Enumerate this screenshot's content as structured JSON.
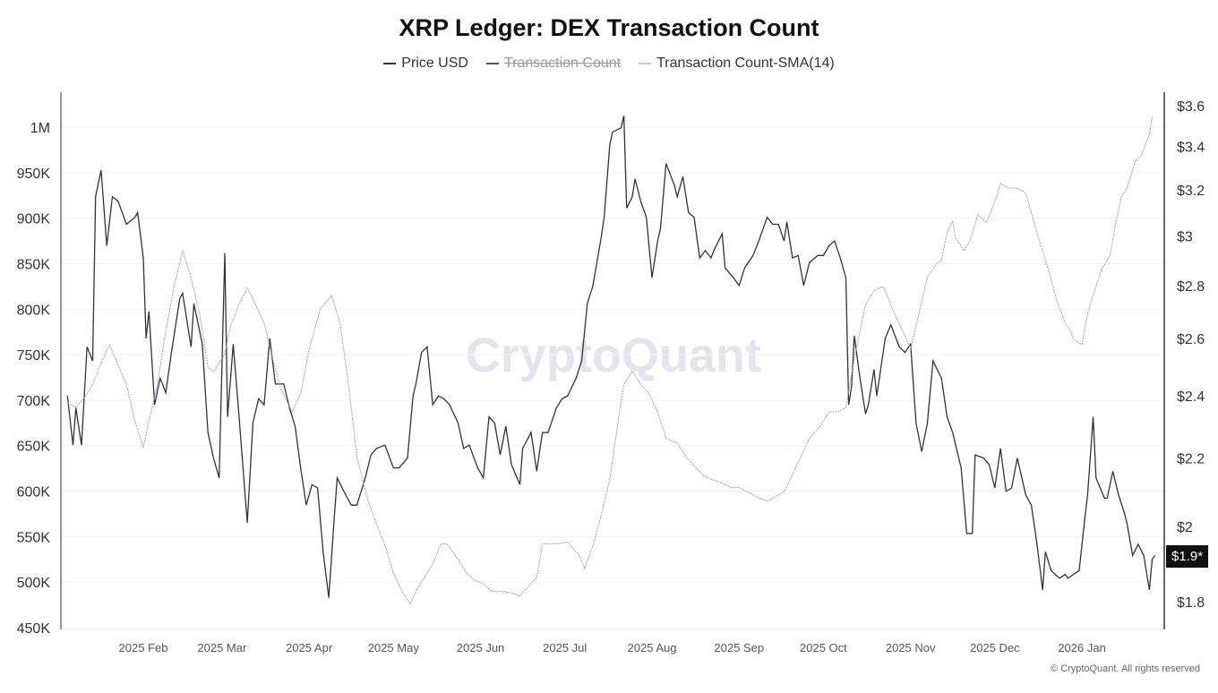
{
  "title": "XRP Ledger: DEX Transaction Count",
  "legend": [
    {
      "label": "Price USD",
      "color": "#333333",
      "hidden": false
    },
    {
      "label": "Transaction Count",
      "color": "#555555",
      "hidden": true
    },
    {
      "label": "Transaction Count-SMA(14)",
      "color": "#9a9af0",
      "hidden": false
    }
  ],
  "watermark": "CryptoQuant",
  "footer": "© CryptoQuant. All rights reserved",
  "current_price_badge": "$1.9*",
  "chart_data": {
    "type": "line",
    "title": "XRP Ledger: DEX Transaction Count",
    "x_ticks": [
      "2025 Feb",
      "2025 Mar",
      "2025 Apr",
      "2025 May",
      "2025 Jun",
      "2025 Jul",
      "2025 Aug",
      "2025 Sep",
      "2025 Oct",
      "2025 Nov",
      "2025 Dec",
      "2026 Jan"
    ],
    "left_axis": {
      "ticks": [
        "1M",
        "950K",
        "900K",
        "850K",
        "800K",
        "750K",
        "700K",
        "650K",
        "600K",
        "550K",
        "500K",
        "450K"
      ],
      "range": [
        450000,
        1000000
      ],
      "scale": "linear"
    },
    "right_axis": {
      "ticks": [
        "$3.6",
        "$3.4",
        "$3.2",
        "$3",
        "$2.8",
        "$2.6",
        "$2.4",
        "$2.2",
        "$2",
        "$1.8"
      ],
      "range": [
        1.8,
        3.6
      ],
      "scale": "log"
    },
    "grid": true,
    "legend_position": "top",
    "series": [
      {
        "name": "Price USD",
        "axis": "right",
        "color": "#333333",
        "x": [
          "2025-01-05",
          "2025-01-07",
          "2025-01-08",
          "2025-01-10",
          "2025-01-12",
          "2025-01-14",
          "2025-01-15",
          "2025-01-17",
          "2025-01-19",
          "2025-01-21",
          "2025-01-23",
          "2025-01-26",
          "2025-01-29",
          "2025-01-30",
          "2025-02-01",
          "2025-02-02",
          "2025-02-03",
          "2025-02-05",
          "2025-02-07",
          "2025-02-09",
          "2025-02-11",
          "2025-02-14",
          "2025-02-15",
          "2025-02-18",
          "2025-02-19",
          "2025-02-22",
          "2025-02-24",
          "2025-02-26",
          "2025-02-28",
          "2025-03-02",
          "2025-03-03",
          "2025-03-05",
          "2025-03-07",
          "2025-03-10",
          "2025-03-12",
          "2025-03-14",
          "2025-03-16",
          "2025-03-18",
          "2025-03-20",
          "2025-03-23",
          "2025-03-25",
          "2025-03-27",
          "2025-03-29",
          "2025-03-31",
          "2025-04-02",
          "2025-04-04",
          "2025-04-06",
          "2025-04-08",
          "2025-04-10",
          "2025-04-11",
          "2025-04-14",
          "2025-04-16",
          "2025-04-18",
          "2025-04-21",
          "2025-04-23",
          "2025-04-25",
          "2025-04-28",
          "2025-05-01",
          "2025-05-03",
          "2025-05-06",
          "2025-05-08",
          "2025-05-09",
          "2025-05-11",
          "2025-05-13",
          "2025-05-15",
          "2025-05-17",
          "2025-05-19",
          "2025-05-21",
          "2025-05-24",
          "2025-05-26",
          "2025-05-28",
          "2025-05-31",
          "2025-06-02",
          "2025-06-04",
          "2025-06-06",
          "2025-06-08",
          "2025-06-10",
          "2025-06-12",
          "2025-06-15",
          "2025-06-16",
          "2025-06-19",
          "2025-06-21",
          "2025-06-23",
          "2025-06-25",
          "2025-06-28",
          "2025-06-30",
          "2025-07-02",
          "2025-07-05",
          "2025-07-07",
          "2025-07-09",
          "2025-07-11",
          "2025-07-14",
          "2025-07-15",
          "2025-07-17",
          "2025-07-18",
          "2025-07-21",
          "2025-07-22",
          "2025-07-23",
          "2025-07-25",
          "2025-07-26",
          "2025-07-28",
          "2025-07-30",
          "2025-08-01",
          "2025-08-03",
          "2025-08-04",
          "2025-08-06",
          "2025-08-09",
          "2025-08-10",
          "2025-08-12",
          "2025-08-14",
          "2025-08-16",
          "2025-08-18",
          "2025-08-20",
          "2025-08-22",
          "2025-08-23",
          "2025-08-26",
          "2025-08-27",
          "2025-08-30",
          "2025-09-01",
          "2025-09-03",
          "2025-09-06",
          "2025-09-08",
          "2025-09-11",
          "2025-09-13",
          "2025-09-15",
          "2025-09-17",
          "2025-09-18",
          "2025-09-20",
          "2025-09-22",
          "2025-09-24",
          "2025-09-26",
          "2025-09-29",
          "2025-10-01",
          "2025-10-03",
          "2025-10-05",
          "2025-10-07",
          "2025-10-09",
          "2025-10-10",
          "2025-10-11",
          "2025-10-12",
          "2025-10-14",
          "2025-10-16",
          "2025-10-17",
          "2025-10-19",
          "2025-10-20",
          "2025-10-23",
          "2025-10-25",
          "2025-10-28",
          "2025-10-30",
          "2025-11-01",
          "2025-11-03",
          "2025-11-05",
          "2025-11-07",
          "2025-11-09",
          "2025-11-12",
          "2025-11-14",
          "2025-11-16",
          "2025-11-19",
          "2025-11-21",
          "2025-11-23",
          "2025-11-24",
          "2025-11-27",
          "2025-11-29",
          "2025-12-01",
          "2025-12-03",
          "2025-12-05",
          "2025-12-07",
          "2025-12-09",
          "2025-12-12",
          "2025-12-14",
          "2025-12-16",
          "2025-12-18",
          "2025-12-19",
          "2025-12-21",
          "2025-12-24",
          "2025-12-26",
          "2025-12-27",
          "2025-12-29",
          "2025-12-31",
          "2026-01-02",
          "2026-01-03",
          "2026-01-05",
          "2026-01-06",
          "2026-01-09",
          "2026-01-10",
          "2026-01-12",
          "2026-01-14",
          "2026-01-16",
          "2026-01-17",
          "2026-01-19",
          "2026-01-21",
          "2026-01-23",
          "2026-01-25",
          "2026-01-26",
          "2026-01-27"
        ],
        "values": [
          2.4,
          2.24,
          2.36,
          2.24,
          2.57,
          2.52,
          3.17,
          3.29,
          2.96,
          3.17,
          3.15,
          3.05,
          3.08,
          3.1,
          2.91,
          2.6,
          2.7,
          2.37,
          2.46,
          2.41,
          2.55,
          2.75,
          2.77,
          2.57,
          2.73,
          2.58,
          2.28,
          2.2,
          2.14,
          2.93,
          2.33,
          2.58,
          2.34,
          2.01,
          2.31,
          2.39,
          2.37,
          2.6,
          2.44,
          2.44,
          2.36,
          2.3,
          2.17,
          2.06,
          2.12,
          2.11,
          1.93,
          1.81,
          2.03,
          2.14,
          2.09,
          2.06,
          2.06,
          2.14,
          2.21,
          2.23,
          2.24,
          2.17,
          2.17,
          2.2,
          2.4,
          2.44,
          2.55,
          2.57,
          2.37,
          2.4,
          2.39,
          2.37,
          2.31,
          2.23,
          2.24,
          2.17,
          2.14,
          2.33,
          2.31,
          2.21,
          2.3,
          2.18,
          2.12,
          2.23,
          2.28,
          2.16,
          2.28,
          2.28,
          2.36,
          2.39,
          2.4,
          2.46,
          2.52,
          2.73,
          2.8,
          3.0,
          3.08,
          3.41,
          3.47,
          3.49,
          3.55,
          3.12,
          3.17,
          3.25,
          3.15,
          3.08,
          2.83,
          2.98,
          3.03,
          3.32,
          3.22,
          3.17,
          3.26,
          3.1,
          3.08,
          2.91,
          2.94,
          2.91,
          2.94,
          3.01,
          2.87,
          2.83,
          2.8,
          2.87,
          2.92,
          2.98,
          3.08,
          3.05,
          3.05,
          2.98,
          3.06,
          2.91,
          2.92,
          2.8,
          2.89,
          2.92,
          2.92,
          2.96,
          2.98,
          2.91,
          2.83,
          2.37,
          2.43,
          2.61,
          2.46,
          2.34,
          2.37,
          2.49,
          2.4,
          2.6,
          2.65,
          2.57,
          2.55,
          2.58,
          2.31,
          2.22,
          2.31,
          2.52,
          2.46,
          2.33,
          2.28,
          2.17,
          1.98,
          1.98,
          2.21,
          2.2,
          2.18,
          2.11,
          2.23,
          2.1,
          2.11,
          2.2,
          2.09,
          2.06,
          1.95,
          1.83,
          1.93,
          1.88,
          1.86,
          1.87,
          1.86,
          1.87,
          1.88,
          2.02,
          2.09,
          2.33,
          2.14,
          2.08,
          2.08,
          2.16,
          2.09,
          2.04,
          2.01,
          1.92,
          1.95,
          1.92,
          1.83,
          1.91,
          1.92
        ]
      },
      {
        "name": "Transaction Count",
        "axis": "left",
        "hidden": true,
        "x": [],
        "values": []
      },
      {
        "name": "Transaction Count-SMA(14)",
        "axis": "left",
        "color": "#9a9af0",
        "x": [
          "2025-01-05",
          "2025-01-08",
          "2025-01-11",
          "2025-01-14",
          "2025-01-17",
          "2025-01-20",
          "2025-01-22",
          "2025-01-26",
          "2025-01-29",
          "2025-02-01",
          "2025-02-03",
          "2025-02-06",
          "2025-02-09",
          "2025-02-12",
          "2025-02-15",
          "2025-02-18",
          "2025-02-21",
          "2025-02-24",
          "2025-02-26",
          "2025-03-02",
          "2025-03-04",
          "2025-03-07",
          "2025-03-10",
          "2025-03-13",
          "2025-03-16",
          "2025-03-19",
          "2025-03-22",
          "2025-03-26",
          "2025-03-29",
          "2025-04-01",
          "2025-04-05",
          "2025-04-09",
          "2025-04-12",
          "2025-04-15",
          "2025-04-18",
          "2025-04-22",
          "2025-04-25",
          "2025-04-28",
          "2025-05-01",
          "2025-05-04",
          "2025-05-07",
          "2025-05-09",
          "2025-05-12",
          "2025-05-15",
          "2025-05-18",
          "2025-05-20",
          "2025-05-24",
          "2025-05-27",
          "2025-05-30",
          "2025-06-02",
          "2025-06-05",
          "2025-06-08",
          "2025-06-12",
          "2025-06-15",
          "2025-06-18",
          "2025-06-21",
          "2025-06-23",
          "2025-06-28",
          "2025-07-02",
          "2025-07-06",
          "2025-07-08",
          "2025-07-11",
          "2025-07-14",
          "2025-07-17",
          "2025-07-20",
          "2025-07-22",
          "2025-07-25",
          "2025-07-28",
          "2025-07-31",
          "2025-08-03",
          "2025-08-06",
          "2025-08-10",
          "2025-08-13",
          "2025-08-16",
          "2025-08-19",
          "2025-08-22",
          "2025-08-26",
          "2025-08-29",
          "2025-09-01",
          "2025-09-04",
          "2025-09-07",
          "2025-09-11",
          "2025-09-14",
          "2025-09-17",
          "2025-09-20",
          "2025-09-23",
          "2025-09-26",
          "2025-09-30",
          "2025-10-03",
          "2025-10-06",
          "2025-10-09",
          "2025-10-12",
          "2025-10-16",
          "2025-10-19",
          "2025-10-22",
          "2025-10-23",
          "2025-10-27",
          "2025-10-30",
          "2025-11-01",
          "2025-11-04",
          "2025-11-07",
          "2025-11-10",
          "2025-11-12",
          "2025-11-14",
          "2025-11-16",
          "2025-11-17",
          "2025-11-20",
          "2025-11-22",
          "2025-11-25",
          "2025-11-28",
          "2025-12-01",
          "2025-12-03",
          "2025-12-06",
          "2025-12-09",
          "2025-12-12",
          "2025-12-15",
          "2025-12-17",
          "2025-12-20",
          "2025-12-23",
          "2025-12-26",
          "2025-12-28",
          "2025-12-29",
          "2026-01-01",
          "2026-01-03",
          "2026-01-05",
          "2026-01-08",
          "2026-01-11",
          "2026-01-13",
          "2026-01-15",
          "2026-01-17",
          "2026-01-20",
          "2026-01-22",
          "2026-01-25",
          "2026-01-26"
        ],
        "values": [
          697000,
          692000,
          702000,
          717000,
          741000,
          761000,
          746000,
          717000,
          677000,
          648000,
          677000,
          717000,
          776000,
          825000,
          864000,
          835000,
          795000,
          736000,
          731000,
          751000,
          781000,
          805000,
          823000,
          805000,
          785000,
          746000,
          712000,
          687000,
          707000,
          756000,
          800000,
          815000,
          785000,
          717000,
          638000,
          589000,
          564000,
          540000,
          510000,
          490000,
          476000,
          490000,
          505000,
          520000,
          542000,
          542000,
          525000,
          510000,
          502000,
          498000,
          490000,
          490000,
          488000,
          485000,
          495000,
          505000,
          542000,
          542000,
          544000,
          530000,
          515000,
          540000,
          574000,
          613000,
          677000,
          717000,
          732000,
          717000,
          707000,
          687000,
          658000,
          653000,
          638000,
          628000,
          618000,
          613000,
          609000,
          604000,
          604000,
          599000,
          594000,
          589000,
          594000,
          599000,
          618000,
          638000,
          658000,
          672000,
          687000,
          687000,
          692000,
          746000,
          805000,
          820000,
          825000,
          820000,
          790000,
          771000,
          756000,
          795000,
          835000,
          849000,
          854000,
          884000,
          897000,
          879000,
          864000,
          874000,
          904000,
          895000,
          918000,
          938000,
          933000,
          933000,
          928000,
          895000,
          874000,
          844000,
          810000,
          785000,
          776000,
          766000,
          761000,
          795000,
          815000,
          844000,
          859000,
          894000,
          923000,
          933000,
          963000,
          968000,
          992000,
          1012000
        ]
      }
    ]
  }
}
